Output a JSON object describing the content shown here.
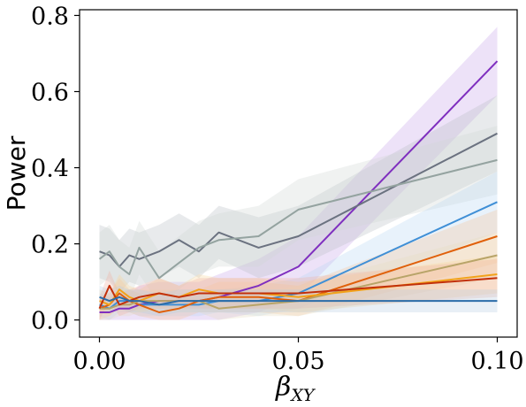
{
  "chart_data": {
    "type": "line",
    "xlabel_main": "β",
    "xlabel_sub": "XY",
    "ylabel": "Power",
    "xlim": [
      -0.005,
      0.105
    ],
    "ylim": [
      -0.045,
      0.815
    ],
    "xticks": [
      0.0,
      0.05,
      0.1
    ],
    "xtick_labels": [
      "0.00",
      "0.05",
      "0.10"
    ],
    "yticks": [
      0.0,
      0.2,
      0.4,
      0.6,
      0.8
    ],
    "ytick_labels": [
      "0.0",
      "0.2",
      "0.4",
      "0.6",
      "0.8"
    ],
    "grid": false,
    "x": [
      0.0,
      0.0025,
      0.005,
      0.0075,
      0.01,
      0.015,
      0.02,
      0.025,
      0.03,
      0.04,
      0.05,
      0.1
    ],
    "series": [
      {
        "color": "#7f2fbf",
        "values": [
          0.02,
          0.02,
          0.03,
          0.03,
          0.04,
          0.05,
          0.05,
          0.05,
          0.06,
          0.09,
          0.14,
          0.68
        ],
        "band": [
          0.03,
          0.03,
          0.04,
          0.04,
          0.05,
          0.05,
          0.05,
          0.05,
          0.06,
          0.07,
          0.08,
          0.09
        ],
        "band_color": "#c8a6e8"
      },
      {
        "color": "#6b7280",
        "values": [
          0.18,
          0.17,
          0.14,
          0.17,
          0.16,
          0.18,
          0.21,
          0.18,
          0.23,
          0.19,
          0.22,
          0.49
        ],
        "band": [
          0.07,
          0.07,
          0.07,
          0.07,
          0.07,
          0.07,
          0.07,
          0.07,
          0.07,
          0.08,
          0.08,
          0.1
        ],
        "band_color": "#b9bec4"
      },
      {
        "color": "#94a3a0",
        "values": [
          0.16,
          0.18,
          0.14,
          0.12,
          0.19,
          0.11,
          0.15,
          0.19,
          0.21,
          0.22,
          0.29,
          0.42
        ],
        "band": [
          0.07,
          0.07,
          0.07,
          0.07,
          0.07,
          0.07,
          0.07,
          0.07,
          0.07,
          0.08,
          0.08,
          0.09
        ],
        "band_color": "#cfd6d4"
      },
      {
        "color": "#3f8fd6",
        "values": [
          0.04,
          0.03,
          0.05,
          0.05,
          0.04,
          0.04,
          0.04,
          0.04,
          0.05,
          0.05,
          0.07,
          0.31
        ],
        "band": [
          0.03,
          0.03,
          0.03,
          0.03,
          0.03,
          0.03,
          0.03,
          0.03,
          0.03,
          0.04,
          0.04,
          0.08
        ],
        "band_color": "#b9d8f2"
      },
      {
        "color": "#e0600a",
        "values": [
          0.03,
          0.04,
          0.07,
          0.05,
          0.04,
          0.02,
          0.03,
          0.05,
          0.06,
          0.06,
          0.05,
          0.22
        ],
        "band": [
          0.03,
          0.03,
          0.04,
          0.03,
          0.03,
          0.03,
          0.03,
          0.03,
          0.04,
          0.04,
          0.04,
          0.07
        ],
        "band_color": "#f7c39a"
      },
      {
        "color": "#b8a468",
        "values": [
          0.03,
          0.03,
          0.04,
          0.04,
          0.05,
          0.05,
          0.05,
          0.05,
          0.03,
          0.04,
          0.05,
          0.17
        ],
        "band": [
          0.03,
          0.03,
          0.03,
          0.03,
          0.03,
          0.03,
          0.03,
          0.03,
          0.03,
          0.03,
          0.04,
          0.06
        ],
        "band_color": "#e6dcc0"
      },
      {
        "color": "#f2a21a",
        "values": [
          0.05,
          0.04,
          0.08,
          0.06,
          0.05,
          0.07,
          0.06,
          0.08,
          0.07,
          0.07,
          0.06,
          0.12
        ],
        "band": [
          0.03,
          0.03,
          0.04,
          0.03,
          0.03,
          0.04,
          0.03,
          0.04,
          0.04,
          0.04,
          0.04,
          0.05
        ],
        "band_color": "#f8d79a"
      },
      {
        "color": "#c2300a",
        "values": [
          0.03,
          0.09,
          0.04,
          0.05,
          0.06,
          0.07,
          0.06,
          0.07,
          0.07,
          0.07,
          0.07,
          0.11
        ],
        "band": [
          0.03,
          0.04,
          0.03,
          0.03,
          0.03,
          0.04,
          0.03,
          0.04,
          0.04,
          0.04,
          0.04,
          0.05
        ],
        "band_color": "#eeb2a2"
      },
      {
        "color": "#2b6ca8",
        "values": [
          0.06,
          0.05,
          0.06,
          0.05,
          0.05,
          0.04,
          0.05,
          0.05,
          0.05,
          0.05,
          0.05,
          0.05
        ],
        "band": [
          0.03,
          0.03,
          0.03,
          0.03,
          0.03,
          0.03,
          0.03,
          0.03,
          0.03,
          0.03,
          0.03,
          0.03
        ],
        "band_color": "#b7cde3"
      }
    ]
  }
}
